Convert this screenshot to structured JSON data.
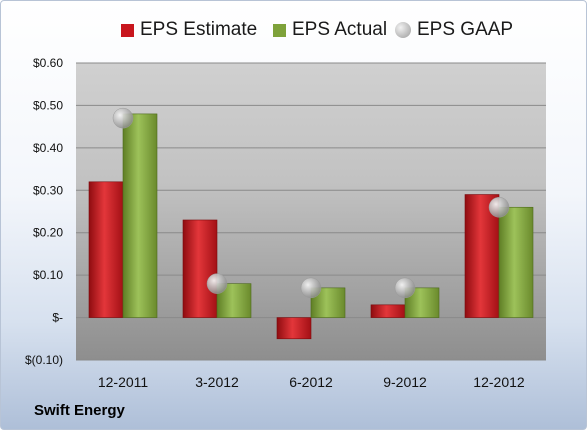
{
  "company": "Swift Energy",
  "colors": {
    "estimate": "#c8161d",
    "actual": "#7ea23a",
    "gaap": "#b3b3b3"
  },
  "chart_data": {
    "type": "bar",
    "categories": [
      "12-2011",
      "3-2012",
      "6-2012",
      "9-2012",
      "12-2012"
    ],
    "series": [
      {
        "name": "EPS Estimate",
        "kind": "bar",
        "values": [
          0.32,
          0.23,
          -0.05,
          0.03,
          0.29
        ]
      },
      {
        "name": "EPS Actual",
        "kind": "bar",
        "values": [
          0.48,
          0.08,
          0.07,
          0.07,
          0.26
        ]
      },
      {
        "name": "EPS GAAP",
        "kind": "marker",
        "values": [
          0.47,
          0.08,
          0.07,
          0.07,
          0.26
        ]
      }
    ],
    "ylim": [
      -0.1,
      0.6
    ],
    "yticks": [
      -0.1,
      0.0,
      0.1,
      0.2,
      0.3,
      0.4,
      0.5,
      0.6
    ],
    "ytick_labels": [
      "$(0.10)",
      "$-",
      "$0.10",
      "$0.20",
      "$0.30",
      "$0.40",
      "$0.50",
      "$0.60"
    ],
    "grid": true,
    "legend": "top"
  }
}
